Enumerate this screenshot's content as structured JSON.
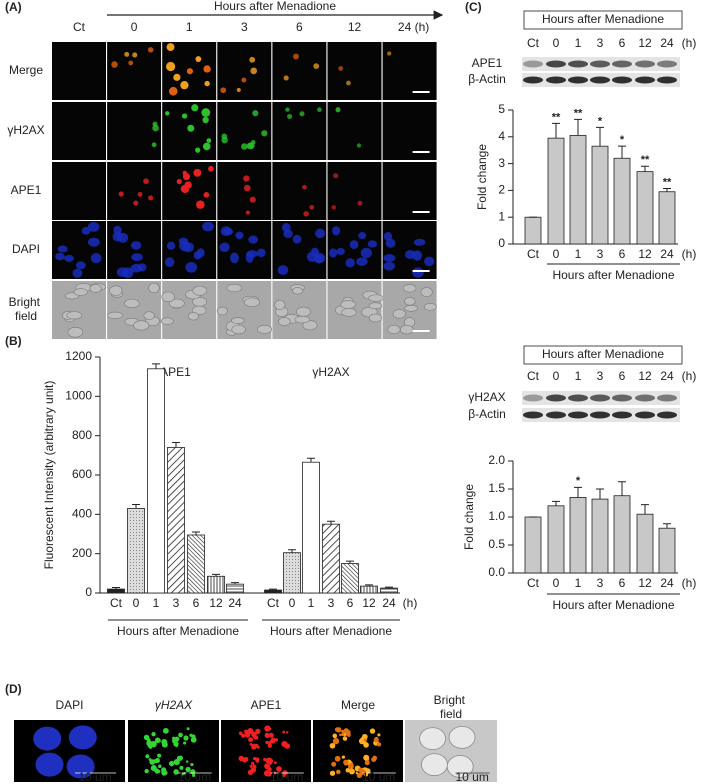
{
  "figure": {
    "panel_a": {
      "letter": "(A)",
      "time_label": "Hours after Menadione",
      "columns": [
        "Ct",
        "0",
        "1",
        "3",
        "6",
        "12",
        "24 (h)"
      ],
      "rows": [
        "Merge",
        "γH2AX",
        "APE1",
        "DAPI",
        "Bright field"
      ]
    },
    "panel_d": {
      "letter": "(D)",
      "labels": [
        "DAPI",
        "γH2AX",
        "APE1",
        "Merge",
        "Bright field"
      ],
      "scale_label": "10 um"
    }
  },
  "chart_data": [
    {
      "type": "bar",
      "panel": "(B)",
      "y_label": "Fluorescent Intensity (arbitrary unit)",
      "x_label": "Hours after Menadione",
      "categories": [
        "Ct",
        "0",
        "1",
        "3",
        "6",
        "12",
        "24"
      ],
      "x_unit": "(h)",
      "series": [
        {
          "name": "APE1",
          "values": [
            20,
            430,
            1140,
            740,
            295,
            85,
            45
          ],
          "errors": [
            8,
            20,
            25,
            25,
            15,
            10,
            8
          ]
        },
        {
          "name": "γH2AX",
          "values": [
            15,
            205,
            665,
            350,
            150,
            35,
            25
          ],
          "errors": [
            5,
            15,
            20,
            15,
            12,
            6,
            5
          ]
        }
      ],
      "ylim": [
        0,
        1200
      ],
      "yticks": [
        0,
        200,
        400,
        600,
        800,
        1000,
        1200
      ]
    },
    {
      "type": "bar",
      "panel": "(C)",
      "blot": {
        "title": "Hours after Menadione",
        "rows": [
          "APE1",
          "β-Actin"
        ]
      },
      "y_label": "Fold change",
      "x_label": "Hours after Menadione",
      "categories": [
        "Ct",
        "0",
        "1",
        "3",
        "6",
        "12",
        "24"
      ],
      "x_unit": "(h)",
      "values": [
        1,
        3.95,
        4.05,
        3.65,
        3.2,
        2.7,
        1.95
      ],
      "errors": [
        0,
        0.55,
        0.6,
        0.7,
        0.45,
        0.2,
        0.12
      ],
      "significance": [
        null,
        "**",
        "**",
        "*",
        "*",
        "**",
        "**"
      ],
      "color": "#c8c8c8",
      "ylim": [
        0,
        5
      ],
      "yticks": [
        0,
        1,
        2,
        3,
        4,
        5
      ]
    },
    {
      "type": "bar",
      "blot": {
        "title": "Hours after Menadione",
        "rows": [
          "γH2AX",
          "β-Actin"
        ]
      },
      "y_label": "Fold change",
      "x_label": "Hours after Menadione",
      "categories": [
        "Ct",
        "0",
        "1",
        "3",
        "6",
        "12",
        "24"
      ],
      "x_unit": "(h)",
      "values": [
        1.0,
        1.2,
        1.35,
        1.32,
        1.38,
        1.05,
        0.8
      ],
      "errors": [
        0,
        0.08,
        0.18,
        0.18,
        0.25,
        0.17,
        0.08
      ],
      "significance": [
        null,
        null,
        "*",
        null,
        null,
        null,
        null
      ],
      "color": "#c8c8c8",
      "ylim": [
        0,
        2
      ],
      "yticks": [
        {
          "value": 0,
          "label": "0.0"
        },
        {
          "value": 0.5,
          "label": "0.5"
        },
        {
          "value": 1,
          "label": "1.0"
        },
        {
          "value": 1.5,
          "label": "1.5"
        },
        {
          "value": 2,
          "label": "2.0"
        }
      ]
    }
  ]
}
